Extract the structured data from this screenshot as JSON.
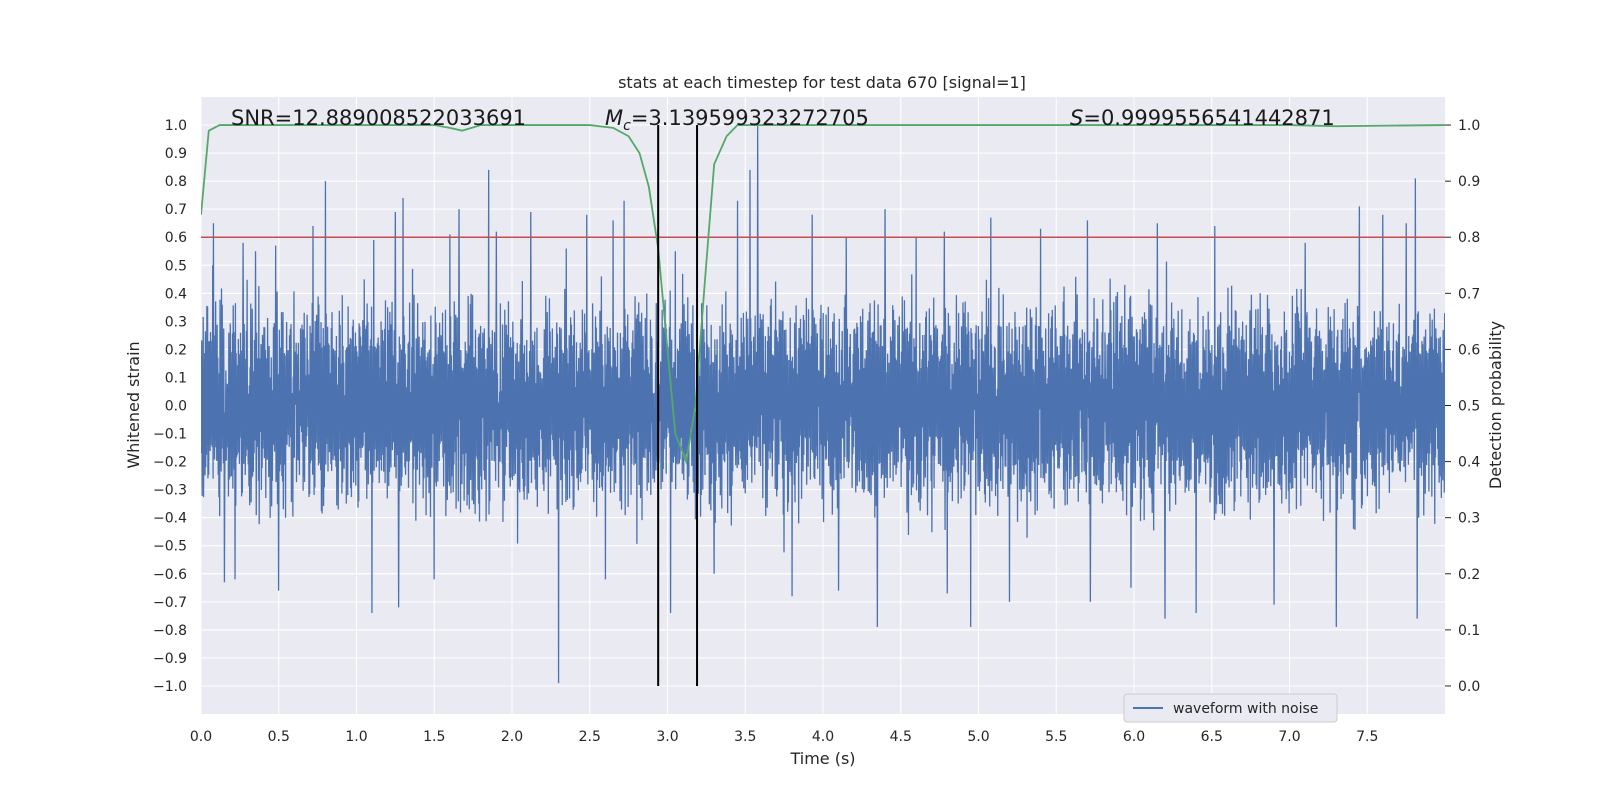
{
  "chart_data": {
    "type": "line",
    "title": "stats at each timestep for test data 670 [signal=1]",
    "xlabel": "Time (s)",
    "ylabel": "Whitened strain",
    "y2label": "Detection probability",
    "xlim": [
      0.0,
      8.0
    ],
    "ylim": [
      -1.1,
      1.1
    ],
    "y2lim": [
      -0.05,
      1.05
    ],
    "xticks": [
      0.0,
      0.5,
      1.0,
      1.5,
      2.0,
      2.5,
      3.0,
      3.5,
      4.0,
      4.5,
      5.0,
      5.5,
      6.0,
      6.5,
      7.0,
      7.5
    ],
    "xtick_labels": [
      "0.0",
      "0.5",
      "1.0",
      "1.5",
      "2.0",
      "2.5",
      "3.0",
      "3.5",
      "4.0",
      "4.5",
      "5.0",
      "5.5",
      "6.0",
      "6.5",
      "7.0",
      "7.5"
    ],
    "yticks": [
      -1.0,
      -0.9,
      -0.8,
      -0.7,
      -0.6,
      -0.5,
      -0.4,
      -0.3,
      -0.2,
      -0.1,
      0.0,
      0.1,
      0.2,
      0.3,
      0.4,
      0.5,
      0.6,
      0.7,
      0.8,
      0.9,
      1.0
    ],
    "ytick_labels": [
      "−1.0",
      "−0.9",
      "−0.8",
      "−0.7",
      "−0.6",
      "−0.5",
      "−0.4",
      "−0.3",
      "−0.2",
      "−0.1",
      "0.0",
      "0.1",
      "0.2",
      "0.3",
      "0.4",
      "0.5",
      "0.6",
      "0.7",
      "0.8",
      "0.9",
      "1.0"
    ],
    "y2ticks": [
      0.0,
      0.1,
      0.2,
      0.3,
      0.4,
      0.5,
      0.6,
      0.7,
      0.8,
      0.9,
      1.0
    ],
    "y2tick_labels": [
      "0.0",
      "0.1",
      "0.2",
      "0.3",
      "0.4",
      "0.5",
      "0.6",
      "0.7",
      "0.8",
      "0.9",
      "1.0"
    ],
    "grid": true,
    "legend": {
      "position": "lower-right",
      "entries": [
        "waveform with noise"
      ]
    },
    "annotations": {
      "snr": "SNR=12.889008522033691",
      "mc_symbol": "M",
      "mc_sub": "c",
      "mc_value": "=3.139599323272705",
      "s_symbol": "S",
      "s_value": "=0.9999556541442871"
    },
    "threshold": {
      "y": 0.6,
      "color": "#c44e52"
    },
    "vlines": [
      2.94,
      3.19
    ],
    "waveform": {
      "name": "waveform with noise",
      "color": "#4c72b0",
      "x_range": [
        0.0,
        8.0
      ],
      "typical_peak": 0.32,
      "peaks": [
        {
          "x": 0.08,
          "y": 0.65
        },
        {
          "x": 0.27,
          "y": 0.58
        },
        {
          "x": 0.35,
          "y": 0.55
        },
        {
          "x": 0.48,
          "y": 0.57
        },
        {
          "x": 0.72,
          "y": 0.64
        },
        {
          "x": 0.8,
          "y": 0.8
        },
        {
          "x": 1.11,
          "y": 0.59
        },
        {
          "x": 1.25,
          "y": 0.69
        },
        {
          "x": 1.3,
          "y": 0.74
        },
        {
          "x": 1.6,
          "y": 0.61
        },
        {
          "x": 1.66,
          "y": 0.7
        },
        {
          "x": 1.85,
          "y": 0.84
        },
        {
          "x": 1.9,
          "y": 0.62
        },
        {
          "x": 2.12,
          "y": 0.69
        },
        {
          "x": 2.35,
          "y": 0.56
        },
        {
          "x": 2.48,
          "y": 0.68
        },
        {
          "x": 2.65,
          "y": 0.66
        },
        {
          "x": 2.72,
          "y": 0.73
        },
        {
          "x": 3.05,
          "y": 0.55
        },
        {
          "x": 3.3,
          "y": 0.68
        },
        {
          "x": 3.45,
          "y": 0.73
        },
        {
          "x": 3.53,
          "y": 0.84
        },
        {
          "x": 3.58,
          "y": 1.0
        },
        {
          "x": 3.8,
          "y": 0.77
        },
        {
          "x": 3.93,
          "y": 0.68
        },
        {
          "x": 4.15,
          "y": 0.6
        },
        {
          "x": 4.4,
          "y": 0.7
        },
        {
          "x": 4.6,
          "y": 0.6
        },
        {
          "x": 4.78,
          "y": 0.62
        },
        {
          "x": 5.08,
          "y": 0.67
        },
        {
          "x": 5.4,
          "y": 0.63
        },
        {
          "x": 5.7,
          "y": 0.66
        },
        {
          "x": 6.15,
          "y": 0.65
        },
        {
          "x": 6.52,
          "y": 0.64
        },
        {
          "x": 6.9,
          "y": 0.61
        },
        {
          "x": 7.1,
          "y": 0.58
        },
        {
          "x": 7.45,
          "y": 0.71
        },
        {
          "x": 7.6,
          "y": 0.68
        },
        {
          "x": 7.75,
          "y": 0.65
        },
        {
          "x": 7.81,
          "y": 0.81
        },
        {
          "x": 0.15,
          "y": -0.63
        },
        {
          "x": 0.22,
          "y": -0.62
        },
        {
          "x": 0.5,
          "y": -0.66
        },
        {
          "x": 1.1,
          "y": -0.74
        },
        {
          "x": 1.27,
          "y": -0.72
        },
        {
          "x": 1.5,
          "y": -0.62
        },
        {
          "x": 2.3,
          "y": -0.99
        },
        {
          "x": 2.6,
          "y": -0.62
        },
        {
          "x": 3.02,
          "y": -0.74
        },
        {
          "x": 3.3,
          "y": -0.6
        },
        {
          "x": 3.8,
          "y": -0.68
        },
        {
          "x": 4.1,
          "y": -0.66
        },
        {
          "x": 4.35,
          "y": -0.79
        },
        {
          "x": 4.8,
          "y": -0.67
        },
        {
          "x": 4.95,
          "y": -0.79
        },
        {
          "x": 5.2,
          "y": -0.7
        },
        {
          "x": 5.72,
          "y": -0.7
        },
        {
          "x": 5.98,
          "y": -0.65
        },
        {
          "x": 6.2,
          "y": -0.76
        },
        {
          "x": 6.4,
          "y": -0.74
        },
        {
          "x": 6.9,
          "y": -0.71
        },
        {
          "x": 7.3,
          "y": -0.79
        },
        {
          "x": 7.82,
          "y": -0.76
        }
      ]
    },
    "probability": {
      "name": "detection probability",
      "color": "#55a868",
      "x": [
        0.0,
        0.05,
        0.12,
        0.2,
        0.5,
        1.0,
        1.5,
        1.6,
        1.68,
        1.8,
        2.0,
        2.5,
        2.65,
        2.75,
        2.82,
        2.88,
        2.94,
        3.0,
        3.05,
        3.12,
        3.18,
        3.24,
        3.3,
        3.38,
        3.45,
        3.55,
        4.0,
        5.0,
        6.0,
        7.0,
        7.3,
        8.0
      ],
      "y": [
        0.84,
        0.99,
        1.0,
        1.0,
        1.0,
        1.0,
        1.0,
        0.995,
        0.99,
        1.0,
        1.0,
        1.0,
        0.995,
        0.98,
        0.95,
        0.89,
        0.78,
        0.6,
        0.45,
        0.4,
        0.5,
        0.72,
        0.93,
        0.98,
        1.0,
        1.0,
        1.0,
        1.0,
        1.0,
        1.0,
        0.998,
        1.0
      ]
    }
  }
}
